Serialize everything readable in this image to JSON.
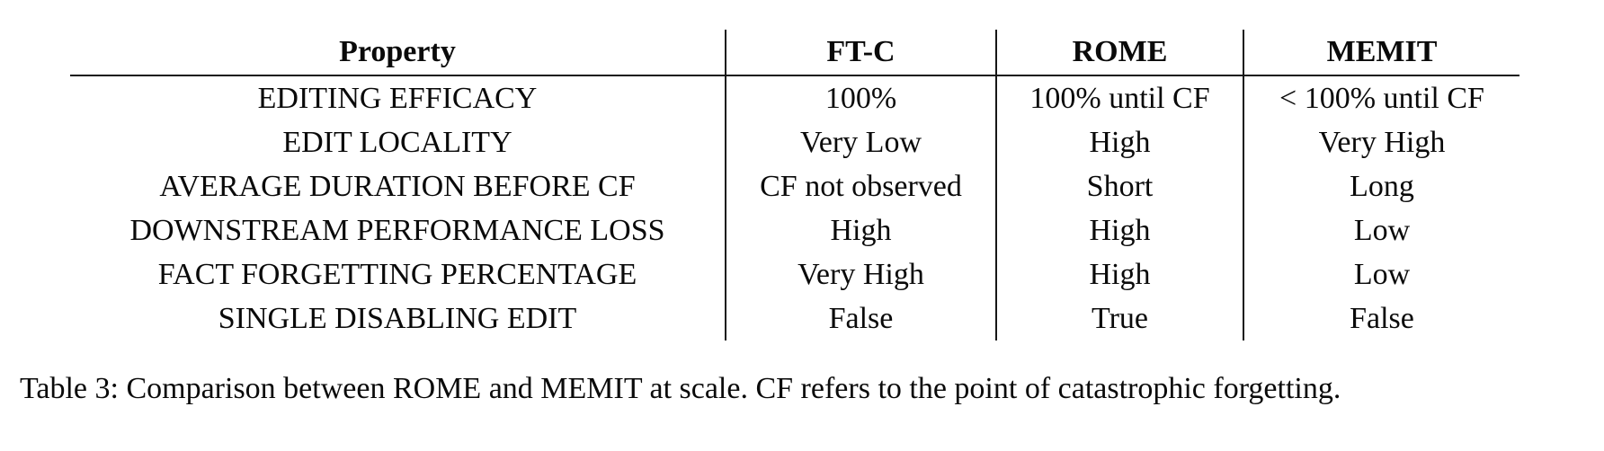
{
  "table": {
    "columns": [
      "Property",
      "FT-C",
      "ROME",
      "MEMIT"
    ],
    "rows": [
      {
        "property": "EDITING EFFICACY",
        "ftc": "100%",
        "rome": "100% until CF",
        "memit": "< 100% until CF"
      },
      {
        "property": "EDIT LOCALITY",
        "ftc": "Very Low",
        "rome": "High",
        "memit": "Very High"
      },
      {
        "property": "AVERAGE DURATION BEFORE CF",
        "ftc": "CF not observed",
        "rome": "Short",
        "memit": "Long"
      },
      {
        "property": "DOWNSTREAM PERFORMANCE LOSS",
        "ftc": "High",
        "rome": "High",
        "memit": "Low"
      },
      {
        "property": "FACT FORGETTING PERCENTAGE",
        "ftc": "Very High",
        "rome": "High",
        "memit": "Low"
      },
      {
        "property": "SINGLE DISABLING EDIT",
        "ftc": "False",
        "rome": "True",
        "memit": "False"
      }
    ]
  },
  "caption": {
    "text": "Table 3: Comparison between ROME and MEMIT at scale. CF refers to the point of catastrophic forgetting."
  },
  "colors": {
    "background": "#ffffff",
    "text": "#0a0a0a",
    "rule": "#161616"
  }
}
